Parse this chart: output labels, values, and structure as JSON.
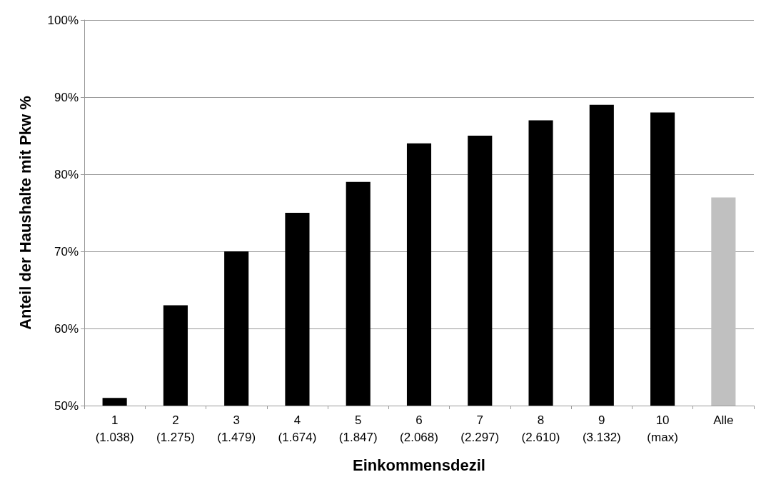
{
  "chart_data": {
    "type": "bar",
    "xlabel": "Einkommensdezil",
    "ylabel": "Anteil der Haushalte mit Pkw %",
    "categories": [
      "1\n(1.038)",
      "2\n(1.275)",
      "3\n(1.479)",
      "4\n(1.674)",
      "5\n(1.847)",
      "6\n(2.068)",
      "7\n(2.297)",
      "8\n(2.610)",
      "9\n(3.132)",
      "10\n(max)",
      "Alle"
    ],
    "values": [
      51,
      63,
      70,
      75,
      79,
      84,
      85,
      87,
      89,
      88,
      77
    ],
    "colors": [
      "#000000",
      "#000000",
      "#000000",
      "#000000",
      "#000000",
      "#000000",
      "#000000",
      "#000000",
      "#000000",
      "#000000",
      "#c0c0c0"
    ],
    "ylim": [
      50,
      100
    ],
    "yticks": [
      {
        "value": 50,
        "label": "50%"
      },
      {
        "value": 60,
        "label": "60%"
      },
      {
        "value": 70,
        "label": "70%"
      },
      {
        "value": 80,
        "label": "80%"
      },
      {
        "value": 90,
        "label": "90%"
      },
      {
        "value": 100,
        "label": "100%"
      }
    ],
    "grid": "y"
  }
}
